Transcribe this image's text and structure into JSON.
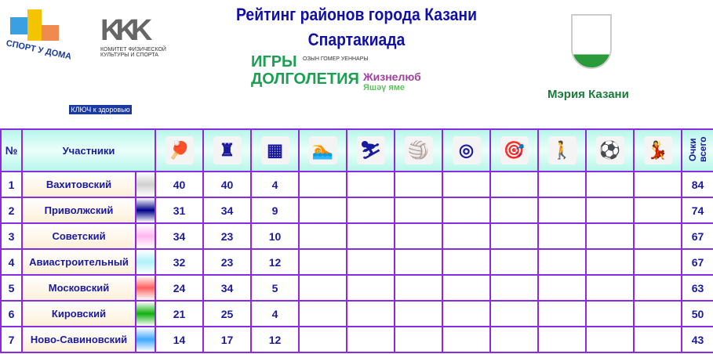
{
  "header": {
    "title": "Рейтинг районов города Казани",
    "subtitle": "Спартакиада",
    "logos": {
      "sport_u_doma": "СПОРТ У ДОМА",
      "committee": "КОМИТЕТ ФИЗИЧЕСКОЙ КУЛЬТУРЫ И СПОРТА",
      "kluch": "КЛЮЧ к здоровью ВОДА",
      "igry": "ИГРЫ ДОЛГОЛЕТИЯ",
      "igry_tat": "ОЗЫН ГОМЕР УЕННАРЫ",
      "zhizn": "Жизнелюб",
      "yashau": "Яшәү яме",
      "meria": "Мэрия Казани"
    }
  },
  "table": {
    "col_num": "№",
    "col_participants": "Участники",
    "col_total": "Очки всего",
    "sport_icons": [
      "table-tennis-icon",
      "chess-icon",
      "checkers-icon",
      "swimming-icon",
      "skiing-icon",
      "volleyball-icon",
      "badge-icon",
      "darts-icon",
      "nordic-walking-icon",
      "football-icon",
      "dance-icon"
    ],
    "rows": [
      {
        "n": "1",
        "name": "Вахитовский",
        "color": "#d0d0d0",
        "scores": [
          "40",
          "40",
          "4"
        ],
        "total": "84"
      },
      {
        "n": "2",
        "name": "Приволжский",
        "color": "#00008b",
        "scores": [
          "31",
          "34",
          "9"
        ],
        "total": "74"
      },
      {
        "n": "3",
        "name": "Советский",
        "color": "#ffb6f0",
        "scores": [
          "34",
          "23",
          "10"
        ],
        "total": "67"
      },
      {
        "n": "4",
        "name": "Авиастроительный",
        "color": "#b0f0f8",
        "scores": [
          "32",
          "23",
          "12"
        ],
        "total": "67"
      },
      {
        "n": "5",
        "name": "Московский",
        "color": "#ff6060",
        "scores": [
          "24",
          "34",
          "5"
        ],
        "total": "63"
      },
      {
        "n": "6",
        "name": "Кировский",
        "color": "#10b010",
        "scores": [
          "21",
          "25",
          "4"
        ],
        "total": "50"
      },
      {
        "n": "7",
        "name": "Ново-Савиновский",
        "color": "#40a8ff",
        "scores": [
          "14",
          "17",
          "12"
        ],
        "total": "43"
      }
    ]
  }
}
